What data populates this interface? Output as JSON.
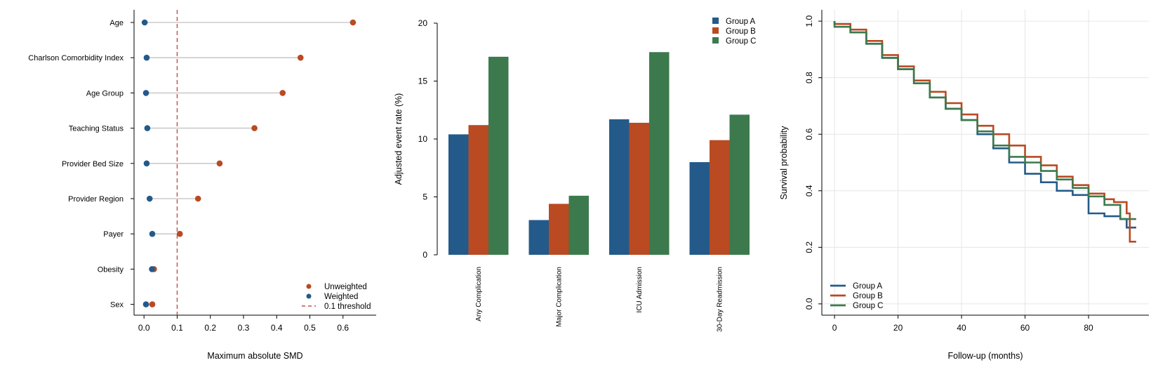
{
  "colors": {
    "unweighted": "#b94a22",
    "weighted": "#245a8a",
    "threshold": "#c0504d",
    "group_a": "#245a8a",
    "group_b": "#b94a22",
    "group_c": "#3c7a4d",
    "connector": "#cccccc"
  },
  "chart_data": [
    {
      "type": "scatter",
      "subtype": "lollipop",
      "xlabel": "Maximum absolute SMD",
      "ylabel": "",
      "xlim": [
        -0.03,
        0.7
      ],
      "xticks": [
        "0.0",
        "0.1",
        "0.2",
        "0.3",
        "0.4",
        "0.5",
        "0.6"
      ],
      "categories": [
        "Age",
        "Charlson Comorbidity Index",
        "Age Group",
        "Teaching Status",
        "Provider Bed Size",
        "Provider Region",
        "Payer",
        "Obesity",
        "Sex"
      ],
      "series": [
        {
          "name": "Unweighted",
          "values": [
            0.63,
            0.472,
            0.418,
            0.333,
            0.228,
            0.163,
            0.108,
            0.03,
            0.025
          ]
        },
        {
          "name": "Weighted",
          "values": [
            0.002,
            0.008,
            0.006,
            0.01,
            0.008,
            0.017,
            0.025,
            0.024,
            0.006
          ]
        }
      ],
      "threshold": {
        "value": 0.1,
        "label": "0.1 threshold"
      },
      "legend": "bottom-right",
      "grid": false
    },
    {
      "type": "bar",
      "ylabel": "Adjusted event rate (%)",
      "xlabel": "",
      "ylim": [
        0,
        20
      ],
      "yticks": [
        "0",
        "5",
        "10",
        "15",
        "20"
      ],
      "categories": [
        "Any Complication",
        "Major Complication",
        "ICU Admission",
        "30-Day Readmission"
      ],
      "series": [
        {
          "name": "Group A",
          "values": [
            10.4,
            3.0,
            11.7,
            8.0
          ]
        },
        {
          "name": "Group B",
          "values": [
            11.2,
            4.4,
            11.4,
            9.9
          ]
        },
        {
          "name": "Group C",
          "values": [
            17.1,
            5.1,
            17.5,
            12.1
          ]
        }
      ],
      "legend": "top-right",
      "grid": false
    },
    {
      "type": "line",
      "subtype": "step",
      "xlabel": "Follow-up (months)",
      "ylabel": "Survival probability",
      "xlim": [
        -4,
        99
      ],
      "ylim": [
        -0.04,
        1.04
      ],
      "xticks": [
        "0",
        "20",
        "40",
        "60",
        "80"
      ],
      "yticks": [
        "0.0",
        "0.2",
        "0.4",
        "0.6",
        "0.8",
        "1.0"
      ],
      "series": [
        {
          "name": "Group A",
          "x": [
            0,
            5,
            10,
            15,
            20,
            25,
            30,
            35,
            40,
            45,
            50,
            55,
            60,
            65,
            70,
            75,
            80,
            85,
            90,
            92,
            95
          ],
          "y": [
            0.99,
            0.96,
            0.92,
            0.87,
            0.83,
            0.78,
            0.73,
            0.69,
            0.65,
            0.6,
            0.55,
            0.5,
            0.46,
            0.43,
            0.4,
            0.385,
            0.32,
            0.31,
            0.3,
            0.27,
            0.27
          ]
        },
        {
          "name": "Group B",
          "x": [
            0,
            5,
            10,
            15,
            20,
            25,
            30,
            35,
            40,
            45,
            50,
            55,
            60,
            65,
            70,
            75,
            80,
            85,
            88,
            90,
            92,
            93,
            95
          ],
          "y": [
            0.99,
            0.97,
            0.93,
            0.88,
            0.84,
            0.79,
            0.75,
            0.71,
            0.67,
            0.63,
            0.6,
            0.56,
            0.52,
            0.49,
            0.45,
            0.42,
            0.39,
            0.37,
            0.36,
            0.36,
            0.32,
            0.22,
            0.22
          ]
        },
        {
          "name": "Group C",
          "x": [
            0,
            5,
            10,
            15,
            20,
            25,
            30,
            35,
            40,
            45,
            50,
            55,
            60,
            65,
            70,
            75,
            80,
            85,
            90,
            95
          ],
          "y": [
            0.98,
            0.96,
            0.92,
            0.87,
            0.83,
            0.78,
            0.73,
            0.69,
            0.65,
            0.61,
            0.56,
            0.52,
            0.5,
            0.47,
            0.44,
            0.41,
            0.38,
            0.35,
            0.3,
            0.3
          ]
        }
      ],
      "legend": "bottom-left",
      "grid": true
    }
  ]
}
